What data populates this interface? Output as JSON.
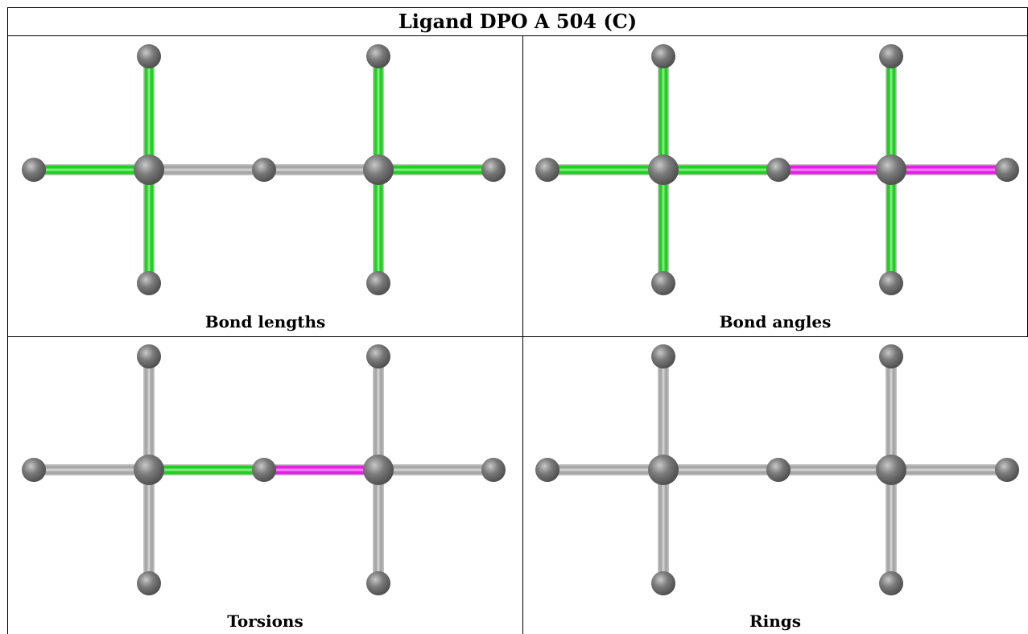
{
  "title": "Ligand DPO A 504 (C)",
  "panels": [
    {
      "caption": "Bond lengths",
      "colors": {
        "b_c1_w": "green",
        "b_c1_n": "green",
        "b_c1_s": "green",
        "b_c1_o": "gray",
        "b_o_c2": "gray",
        "b_c2_n": "green",
        "b_c2_s": "green",
        "b_c2_e": "green"
      }
    },
    {
      "caption": "Bond angles",
      "colors": {
        "b_c1_w": "green",
        "b_c1_n": "green",
        "b_c1_s": "green",
        "b_c1_o": "green",
        "b_o_c2": "magenta",
        "b_c2_n": "green",
        "b_c2_s": "green",
        "b_c2_e": "magenta"
      }
    },
    {
      "caption": "Torsions",
      "colors": {
        "b_c1_w": "gray",
        "b_c1_n": "gray",
        "b_c1_s": "gray",
        "b_c1_o": "green",
        "b_o_c2": "magenta",
        "b_c2_n": "gray",
        "b_c2_s": "gray",
        "b_c2_e": "gray"
      }
    },
    {
      "caption": "Rings",
      "colors": {
        "b_c1_w": "gray",
        "b_c1_n": "gray",
        "b_c1_s": "gray",
        "b_c1_o": "gray",
        "b_o_c2": "gray",
        "b_c2_n": "gray",
        "b_c2_s": "gray",
        "b_c2_e": "gray"
      }
    }
  ],
  "palette": {
    "green": "#1fd11f",
    "magenta": "#e61ee6",
    "gray": "#a8a8a8",
    "atom": "#7a7a7a"
  }
}
